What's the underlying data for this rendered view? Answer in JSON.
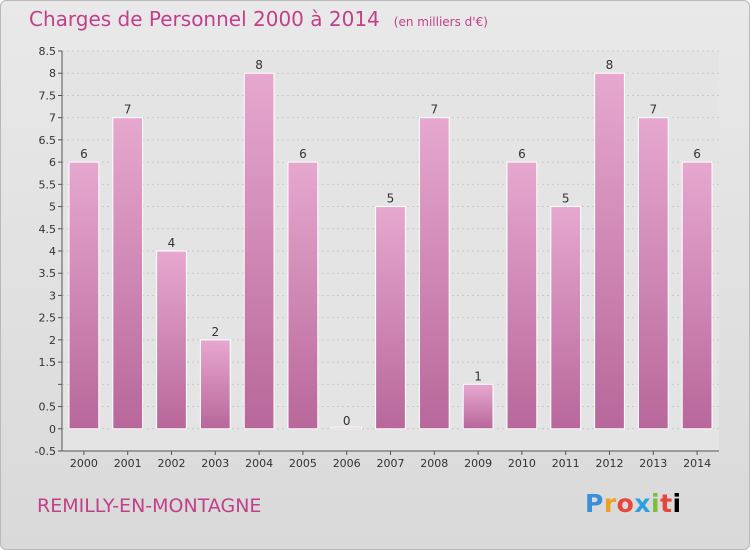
{
  "header": {
    "title": "Charges de Personnel 2000 à 2014",
    "subtitle": "(en milliers d'€)"
  },
  "footer": {
    "commune": "REMILLY-EN-MONTAGNE",
    "brand_letters": [
      "P",
      "r",
      "o",
      "x",
      "i",
      "t",
      "i"
    ]
  },
  "chart_data": {
    "type": "bar",
    "title": "Charges de Personnel 2000 à 2014",
    "subtitle": "(en milliers d'€)",
    "categories": [
      "2000",
      "2001",
      "2002",
      "2003",
      "2004",
      "2005",
      "2006",
      "2007",
      "2008",
      "2009",
      "2010",
      "2011",
      "2012",
      "2013",
      "2014"
    ],
    "values": [
      6,
      7,
      4,
      2,
      8,
      6,
      0,
      5,
      7,
      1,
      6,
      5,
      8,
      7,
      6
    ],
    "data_labels": [
      "6",
      "7",
      "4",
      "2",
      "8",
      "6",
      "0",
      "5",
      "7",
      "1",
      "6",
      "5",
      "8",
      "7",
      "6"
    ],
    "ylim": [
      -0.5,
      8.5
    ],
    "yticks": [
      -0.5,
      0,
      0.5,
      1,
      1.5,
      2,
      2.5,
      3,
      3.5,
      4,
      4.5,
      5,
      5.5,
      6,
      6.5,
      7,
      7.5,
      8,
      8.5
    ],
    "ytick_labels": [
      "-0.5",
      "0",
      "0.5",
      "",
      "1.5",
      "2",
      "2.5",
      "3",
      "3.5",
      "4",
      "4.5",
      "5",
      "5.5",
      "6",
      "6.5",
      "7",
      "7.5",
      "8",
      "8.5"
    ],
    "grid": true,
    "bar_color": "#d98cbc",
    "bar_color_top": "#e6a8cf",
    "bar_color_bottom": "#b8679a",
    "accent_color": "#c0408a"
  }
}
